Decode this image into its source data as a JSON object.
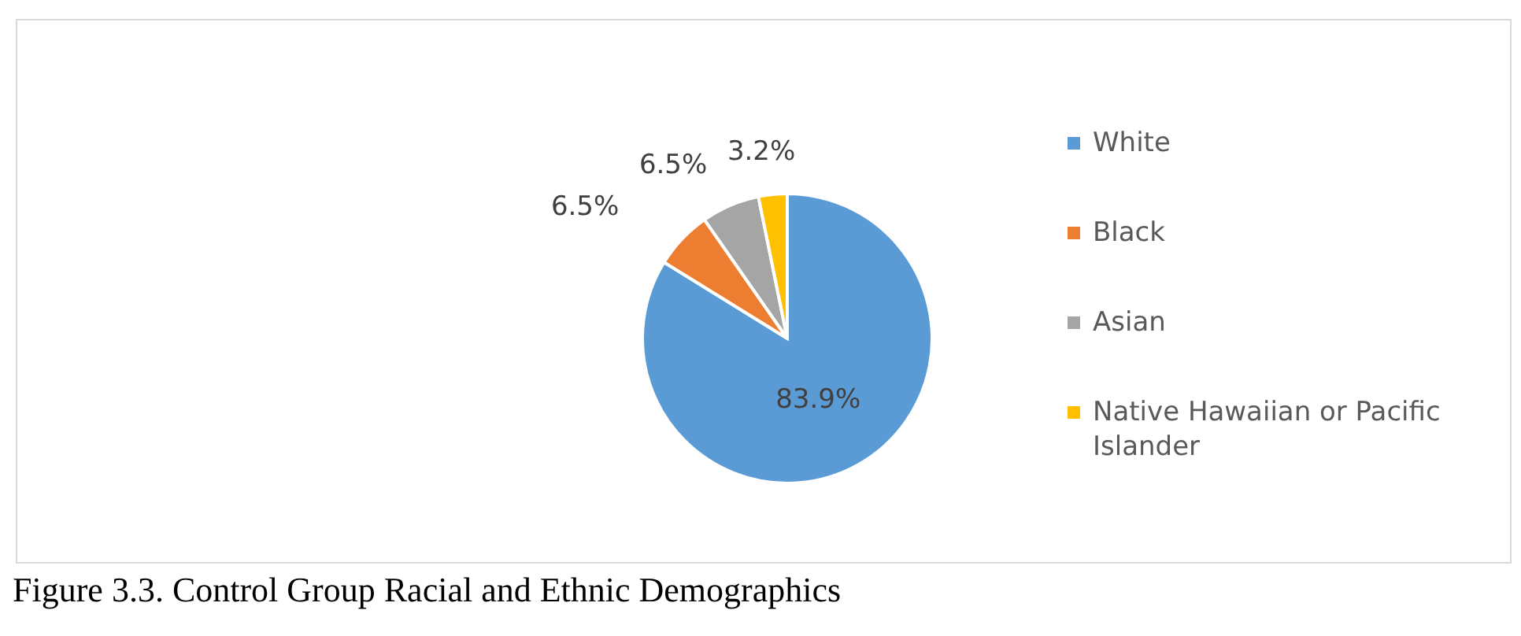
{
  "chart_data": {
    "type": "pie",
    "categories": [
      "White",
      "Black",
      "Asian",
      "Native Hawaiian or Pacific Islander"
    ],
    "values": [
      83.9,
      6.5,
      6.5,
      3.2
    ],
    "value_labels": [
      "83.9%",
      "6.5%",
      "6.5%",
      "3.2%"
    ],
    "colors": [
      "#5b9bd5",
      "#ed7d31",
      "#a5a5a5",
      "#ffc000"
    ],
    "legend": "right",
    "annotations": [
      "Figure 3.3. Control Group Racial and Ethnic Demographics"
    ]
  }
}
